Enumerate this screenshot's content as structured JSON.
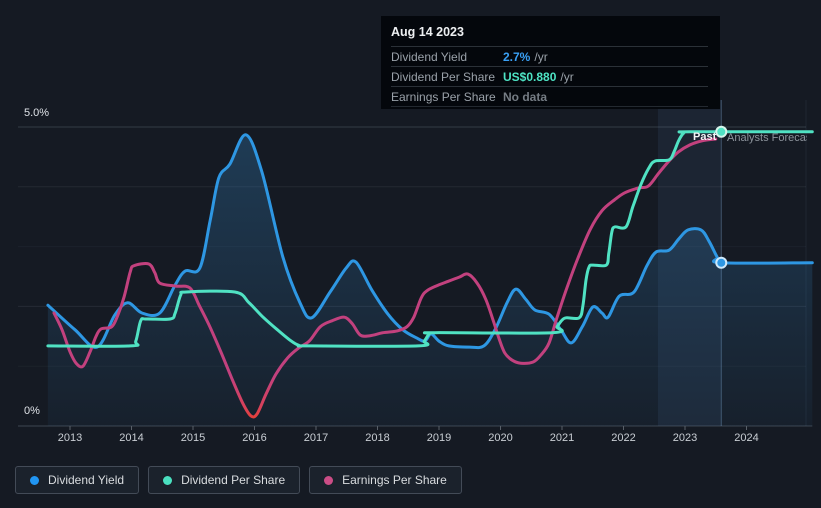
{
  "tooltip": {
    "title": "Aug 14 2023",
    "rows": [
      {
        "label": "Dividend Yield",
        "value": "2.7%",
        "unit": "/yr",
        "color": "#3aa0f5"
      },
      {
        "label": "Dividend Per Share",
        "value": "US$0.880",
        "unit": "/yr",
        "color": "#4ee3c4"
      },
      {
        "label": "Earnings Per Share",
        "value": "No data",
        "unit": "",
        "color": "#757c84"
      }
    ]
  },
  "annotations": {
    "past_label": "Past",
    "forecast_label": "Analysts Forecast"
  },
  "legend": [
    {
      "label": "Dividend Yield",
      "color": "#2196f3"
    },
    {
      "label": "Dividend Per Share",
      "color": "#4ae0c0"
    },
    {
      "label": "Earnings Per Share",
      "color": "#cb4d86"
    }
  ],
  "chart_data": {
    "type": "line",
    "x_ticks": [
      2013,
      2014,
      2015,
      2016,
      2017,
      2018,
      2019,
      2020,
      2021,
      2022,
      2023,
      2024
    ],
    "y_axis": {
      "min": 0,
      "max": 5,
      "top_label": "5.0%",
      "bottom_label": "0%",
      "unit": "%"
    },
    "x_range": [
      2012.64,
      2025.07
    ],
    "past_divider_x": 2023.59,
    "highlight_band": [
      2022.56,
      2023.59
    ],
    "grid": "horizontal",
    "legend_position": "bottom-left",
    "series": [
      {
        "name": "Dividend Yield",
        "color": "#2e97e3",
        "fill_area": true,
        "marker": [
          2023.59,
          2.73
        ],
        "points": [
          [
            2012.64,
            2.02
          ],
          [
            2013.08,
            1.61
          ],
          [
            2013.44,
            1.32
          ],
          [
            2013.73,
            1.86
          ],
          [
            2013.94,
            2.06
          ],
          [
            2014.17,
            1.89
          ],
          [
            2014.46,
            1.89
          ],
          [
            2014.71,
            2.36
          ],
          [
            2014.87,
            2.59
          ],
          [
            2015.11,
            2.64
          ],
          [
            2015.28,
            3.44
          ],
          [
            2015.42,
            4.15
          ],
          [
            2015.6,
            4.38
          ],
          [
            2015.86,
            4.87
          ],
          [
            2016.12,
            4.25
          ],
          [
            2016.46,
            2.83
          ],
          [
            2016.74,
            2.06
          ],
          [
            2016.93,
            1.81
          ],
          [
            2017.23,
            2.24
          ],
          [
            2017.49,
            2.64
          ],
          [
            2017.65,
            2.74
          ],
          [
            2017.91,
            2.27
          ],
          [
            2018.17,
            1.87
          ],
          [
            2018.41,
            1.61
          ],
          [
            2018.64,
            1.47
          ],
          [
            2018.77,
            1.42
          ],
          [
            2018.87,
            1.54
          ],
          [
            2019.0,
            1.42
          ],
          [
            2019.16,
            1.34
          ],
          [
            2019.5,
            1.32
          ],
          [
            2019.73,
            1.34
          ],
          [
            2019.91,
            1.61
          ],
          [
            2020.11,
            2.07
          ],
          [
            2020.25,
            2.29
          ],
          [
            2020.41,
            2.12
          ],
          [
            2020.56,
            1.94
          ],
          [
            2020.79,
            1.87
          ],
          [
            2020.98,
            1.61
          ],
          [
            2021.15,
            1.39
          ],
          [
            2021.33,
            1.66
          ],
          [
            2021.5,
            1.99
          ],
          [
            2021.65,
            1.89
          ],
          [
            2021.75,
            1.82
          ],
          [
            2021.93,
            2.17
          ],
          [
            2022.17,
            2.24
          ],
          [
            2022.38,
            2.68
          ],
          [
            2022.53,
            2.91
          ],
          [
            2022.74,
            2.94
          ],
          [
            2022.9,
            3.13
          ],
          [
            2023.05,
            3.28
          ],
          [
            2023.26,
            3.28
          ],
          [
            2023.39,
            3.09
          ],
          [
            2023.52,
            2.83
          ],
          [
            2023.59,
            2.73
          ],
          [
            2025.07,
            2.73
          ]
        ]
      },
      {
        "name": "Earnings Per Share",
        "color": "#c2417e",
        "low_color": "#e8402e",
        "fill_area": false,
        "points": [
          [
            2012.74,
            1.89
          ],
          [
            2012.87,
            1.61
          ],
          [
            2013.0,
            1.24
          ],
          [
            2013.1,
            1.05
          ],
          [
            2013.21,
            1.0
          ],
          [
            2013.33,
            1.25
          ],
          [
            2013.42,
            1.49
          ],
          [
            2013.5,
            1.62
          ],
          [
            2013.68,
            1.66
          ],
          [
            2013.78,
            1.86
          ],
          [
            2013.88,
            2.16
          ],
          [
            2013.98,
            2.58
          ],
          [
            2014.04,
            2.68
          ],
          [
            2014.28,
            2.71
          ],
          [
            2014.38,
            2.56
          ],
          [
            2014.46,
            2.39
          ],
          [
            2014.72,
            2.34
          ],
          [
            2014.95,
            2.31
          ],
          [
            2015.1,
            2.02
          ],
          [
            2015.26,
            1.69
          ],
          [
            2015.44,
            1.27
          ],
          [
            2015.63,
            0.8
          ],
          [
            2015.81,
            0.38
          ],
          [
            2015.94,
            0.17
          ],
          [
            2016.04,
            0.2
          ],
          [
            2016.19,
            0.54
          ],
          [
            2016.35,
            0.87
          ],
          [
            2016.54,
            1.14
          ],
          [
            2016.71,
            1.3
          ],
          [
            2016.89,
            1.42
          ],
          [
            2017.07,
            1.66
          ],
          [
            2017.26,
            1.76
          ],
          [
            2017.46,
            1.82
          ],
          [
            2017.59,
            1.71
          ],
          [
            2017.72,
            1.52
          ],
          [
            2017.88,
            1.51
          ],
          [
            2018.09,
            1.56
          ],
          [
            2018.32,
            1.59
          ],
          [
            2018.48,
            1.66
          ],
          [
            2018.59,
            1.82
          ],
          [
            2018.71,
            2.14
          ],
          [
            2018.8,
            2.26
          ],
          [
            2018.95,
            2.34
          ],
          [
            2019.15,
            2.42
          ],
          [
            2019.33,
            2.49
          ],
          [
            2019.47,
            2.54
          ],
          [
            2019.62,
            2.39
          ],
          [
            2019.76,
            2.12
          ],
          [
            2019.88,
            1.77
          ],
          [
            2019.98,
            1.45
          ],
          [
            2020.07,
            1.22
          ],
          [
            2020.19,
            1.1
          ],
          [
            2020.33,
            1.05
          ],
          [
            2020.53,
            1.07
          ],
          [
            2020.66,
            1.19
          ],
          [
            2020.79,
            1.39
          ],
          [
            2020.92,
            1.82
          ],
          [
            2021.08,
            2.31
          ],
          [
            2021.26,
            2.81
          ],
          [
            2021.46,
            3.29
          ],
          [
            2021.65,
            3.6
          ],
          [
            2021.85,
            3.78
          ],
          [
            2022.02,
            3.9
          ],
          [
            2022.24,
            3.98
          ],
          [
            2022.4,
            4.01
          ],
          [
            2022.56,
            4.21
          ],
          [
            2022.72,
            4.41
          ],
          [
            2022.89,
            4.58
          ],
          [
            2023.08,
            4.7
          ],
          [
            2023.28,
            4.77
          ],
          [
            2023.5,
            4.8
          ]
        ]
      },
      {
        "name": "Dividend Per Share",
        "color": "#50e2c3",
        "fill_area": false,
        "marker": [
          2023.59,
          4.92
        ],
        "points": [
          [
            2012.64,
            1.34
          ],
          [
            2013.98,
            1.34
          ],
          [
            2014.07,
            1.42
          ],
          [
            2014.15,
            1.76
          ],
          [
            2014.24,
            1.79
          ],
          [
            2014.63,
            1.79
          ],
          [
            2014.71,
            1.89
          ],
          [
            2014.8,
            2.19
          ],
          [
            2014.89,
            2.24
          ],
          [
            2015.68,
            2.24
          ],
          [
            2015.91,
            2.06
          ],
          [
            2016.14,
            1.82
          ],
          [
            2016.37,
            1.61
          ],
          [
            2016.56,
            1.45
          ],
          [
            2016.72,
            1.35
          ],
          [
            2016.9,
            1.34
          ],
          [
            2018.66,
            1.34
          ],
          [
            2018.76,
            1.42
          ],
          [
            2018.84,
            1.54
          ],
          [
            2018.93,
            1.56
          ],
          [
            2020.84,
            1.56
          ],
          [
            2020.92,
            1.66
          ],
          [
            2021.0,
            1.77
          ],
          [
            2021.07,
            1.81
          ],
          [
            2021.28,
            1.81
          ],
          [
            2021.34,
            2.01
          ],
          [
            2021.39,
            2.44
          ],
          [
            2021.44,
            2.66
          ],
          [
            2021.5,
            2.69
          ],
          [
            2021.72,
            2.69
          ],
          [
            2021.76,
            2.88
          ],
          [
            2021.81,
            3.24
          ],
          [
            2021.86,
            3.33
          ],
          [
            2022.04,
            3.33
          ],
          [
            2022.15,
            3.66
          ],
          [
            2022.28,
            4.03
          ],
          [
            2022.41,
            4.31
          ],
          [
            2022.51,
            4.43
          ],
          [
            2022.74,
            4.45
          ],
          [
            2022.82,
            4.58
          ],
          [
            2022.9,
            4.78
          ],
          [
            2022.98,
            4.9
          ],
          [
            2023.08,
            4.92
          ],
          [
            2025.07,
            4.92
          ]
        ]
      }
    ]
  }
}
